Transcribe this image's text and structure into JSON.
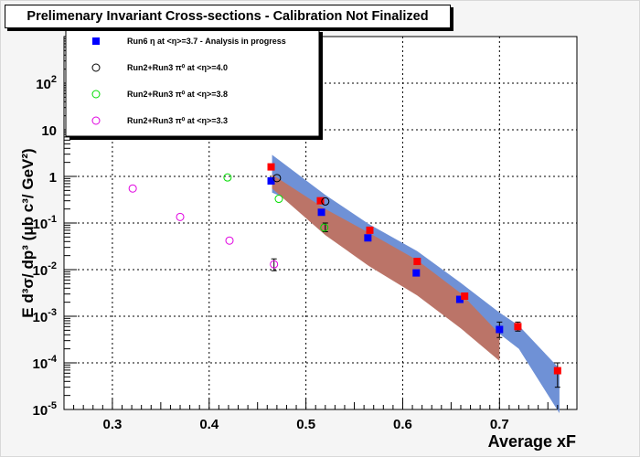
{
  "title": "Prelimenary Invariant Cross-sections - Calibration Not Finalized",
  "chart_data": {
    "type": "scatter",
    "x_axis": {
      "label": "Average xF",
      "range": [
        0.25,
        0.78
      ],
      "ticks": [
        0.3,
        0.4,
        0.5,
        0.6,
        0.7
      ],
      "tick_labels": [
        "0.3",
        "0.4",
        "0.5",
        "0.6",
        "0.7"
      ]
    },
    "y_axis": {
      "label": "E d³σ/ dp³ (μb c³/ GeV²)",
      "scale": "log",
      "range": [
        1e-05,
        1000
      ],
      "decades": [
        -5,
        -4,
        -3,
        -2,
        -1,
        0,
        1,
        2
      ],
      "tick_labels": [
        {
          "base": "10",
          "exp": "-5"
        },
        {
          "base": "10",
          "exp": "-4"
        },
        {
          "base": "10",
          "exp": "-3"
        },
        {
          "base": "10",
          "exp": "-2"
        },
        {
          "base": "10",
          "exp": "-1"
        },
        {
          "base": "1",
          "exp": ""
        },
        {
          "base": "10",
          "exp": ""
        },
        {
          "base": "10",
          "exp": "2"
        }
      ]
    },
    "grid": true,
    "legend": {
      "placement": "top-left",
      "entries": [
        {
          "label": "Run6 η  at <η>=3.7 - Analysis in progress",
          "marker": "filled-square",
          "color": "#0000ff"
        },
        {
          "label": "Run2+Run3 π⁰  at <η>=4.0",
          "marker": "open-circle",
          "color": "#000000"
        },
        {
          "label": "Run2+Run3 π⁰  at <η>=3.8",
          "marker": "open-circle",
          "color": "#00dd00"
        },
        {
          "label": "Run2+Run3 π⁰  at <η>=3.3",
          "marker": "open-circle",
          "color": "#e000e0"
        }
      ]
    },
    "bands": [
      {
        "name": "blue band",
        "color": "#6f91d6",
        "x": [
          0.465,
          0.52,
          0.565,
          0.615,
          0.66,
          0.7,
          0.72,
          0.762
        ],
        "upper": [
          2.9,
          0.4,
          0.095,
          0.025,
          0.0052,
          0.0012,
          0.00063,
          7.5e-05
        ],
        "lower": [
          0.45,
          0.15,
          0.035,
          0.0085,
          0.0019,
          0.00042,
          0.0002,
          8.3e-06
        ]
      },
      {
        "name": "red band",
        "color": "#bb7468",
        "x": [
          0.465,
          0.52,
          0.565,
          0.615,
          0.66,
          0.7
        ],
        "upper": [
          1.1,
          0.2,
          0.062,
          0.016,
          0.0031,
          0.00042
        ],
        "lower": [
          0.55,
          0.055,
          0.012,
          0.0028,
          0.00055,
          0.00011
        ]
      }
    ],
    "series": [
      {
        "name": "Run6 η  at <η>=3.7 - Analysis in progress",
        "marker": "filled-square",
        "color": "#0000ff",
        "x": [
          0.464,
          0.516,
          0.564,
          0.614,
          0.659,
          0.7
        ],
        "y": [
          0.8,
          0.17,
          0.048,
          0.0085,
          0.0023,
          0.00052
        ]
      },
      {
        "name": "red squares",
        "marker": "filled-square",
        "color": "#ff0000",
        "x": [
          0.464,
          0.515,
          0.566,
          0.615,
          0.664,
          0.719,
          0.76
        ],
        "y": [
          1.6,
          0.3,
          0.07,
          0.015,
          0.0027,
          0.0006,
          6.8e-05
        ]
      },
      {
        "name": "Run2+Run3 π⁰  at <η>=4.0",
        "marker": "open-circle",
        "color": "#000000",
        "x": [
          0.47,
          0.52
        ],
        "y": [
          0.92,
          0.29
        ]
      },
      {
        "name": "Run2+Run3 π⁰  at <η>=3.8",
        "marker": "open-circle",
        "color": "#00dd00",
        "x": [
          0.419,
          0.472,
          0.519
        ],
        "y": [
          0.95,
          0.33,
          0.08
        ]
      },
      {
        "name": "Run2+Run3 π⁰  at <η>=3.3",
        "marker": "open-circle",
        "color": "#e000e0",
        "x": [
          0.321,
          0.37,
          0.421,
          0.467
        ],
        "y": [
          0.55,
          0.135,
          0.042,
          0.013
        ]
      }
    ],
    "error_bars": [
      {
        "x": 0.467,
        "low": 0.0095,
        "high": 0.017
      },
      {
        "x": 0.52,
        "low": 0.065,
        "high": 0.1
      },
      {
        "x": 0.7,
        "low": 0.00035,
        "high": 0.00075
      },
      {
        "x": 0.719,
        "low": 0.00048,
        "high": 0.00075
      },
      {
        "x": 0.76,
        "low": 3e-05,
        "high": 0.0001
      }
    ]
  }
}
